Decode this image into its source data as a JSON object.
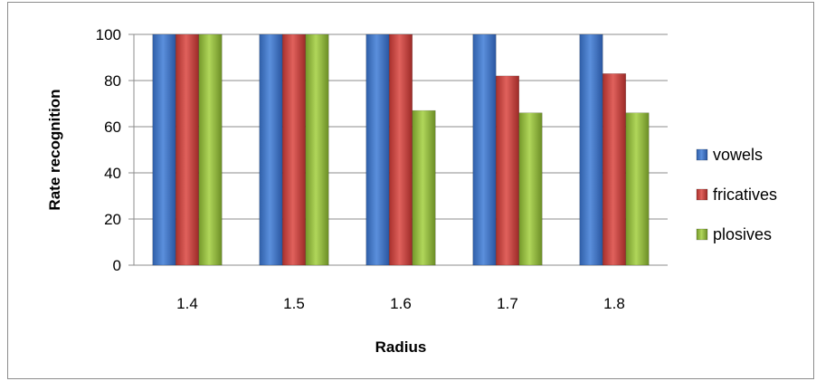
{
  "chart_data": {
    "type": "bar",
    "categories": [
      "1.4",
      "1.5",
      "1.6",
      "1.7",
      "1.8"
    ],
    "series": [
      {
        "name": "vowels",
        "values": [
          100,
          100,
          100,
          100,
          100
        ],
        "color": "#4a7fd0"
      },
      {
        "name": "fricatives",
        "values": [
          100,
          100,
          100,
          82,
          83
        ],
        "color": "#d24b47"
      },
      {
        "name": "plosives",
        "values": [
          100,
          100,
          67,
          66,
          66
        ],
        "color": "#9cc43e"
      }
    ],
    "xlabel": "Radius",
    "ylabel": "Rate recognition",
    "ylim": [
      0,
      100
    ],
    "yticks": [
      "0",
      "20",
      "40",
      "60",
      "80",
      "100"
    ],
    "grid": true,
    "legend_position": "right"
  }
}
